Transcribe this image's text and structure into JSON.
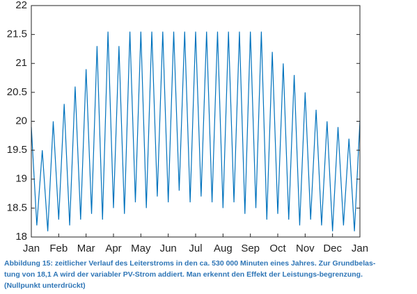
{
  "chart_data": {
    "type": "line",
    "x": [
      0,
      0.2,
      0.4,
      0.6,
      0.8,
      1,
      1.2,
      1.4,
      1.6,
      1.8,
      2,
      2.2,
      2.4,
      2.6,
      2.8,
      3,
      3.2,
      3.4,
      3.6,
      3.8,
      4,
      4.2,
      4.4,
      4.6,
      4.8,
      5,
      5.2,
      5.4,
      5.6,
      5.8,
      6,
      6.2,
      6.4,
      6.6,
      6.8,
      7,
      7.2,
      7.4,
      7.6,
      7.8,
      8,
      8.2,
      8.4,
      8.6,
      8.8,
      9,
      9.2,
      9.4,
      9.6,
      9.8,
      10,
      10.2,
      10.4,
      10.6,
      10.8,
      11,
      11.2,
      11.4,
      11.6,
      11.8,
      12
    ],
    "series": [
      {
        "color": "#0072bd",
        "values": [
          19.9,
          18.2,
          19.5,
          18.1,
          20.0,
          18.3,
          20.3,
          18.2,
          20.6,
          18.3,
          20.9,
          18.4,
          21.3,
          18.3,
          21.55,
          18.5,
          21.3,
          18.4,
          21.55,
          18.6,
          21.55,
          18.5,
          21.55,
          18.7,
          21.55,
          18.6,
          21.55,
          18.8,
          21.55,
          18.6,
          21.55,
          18.7,
          21.55,
          18.6,
          21.55,
          18.5,
          21.55,
          18.6,
          21.55,
          18.4,
          21.55,
          18.5,
          21.55,
          18.3,
          21.2,
          18.4,
          21.0,
          18.3,
          20.8,
          18.2,
          20.5,
          18.3,
          20.2,
          18.2,
          20.0,
          18.1,
          19.9,
          18.2,
          19.7,
          18.1,
          20.0
        ]
      }
    ],
    "xlim": [
      0,
      12
    ],
    "xticks": [
      {
        "value": 0,
        "label": "Jan"
      },
      {
        "value": 1,
        "label": "Feb"
      },
      {
        "value": 2,
        "label": "Mar"
      },
      {
        "value": 3,
        "label": "Apr"
      },
      {
        "value": 4,
        "label": "May"
      },
      {
        "value": 5,
        "label": "Jun"
      },
      {
        "value": 6,
        "label": "Jul"
      },
      {
        "value": 7,
        "label": "Aug"
      },
      {
        "value": 8,
        "label": "Sep"
      },
      {
        "value": 9,
        "label": "Oct"
      },
      {
        "value": 10,
        "label": "Nov"
      },
      {
        "value": 11,
        "label": "Dec"
      },
      {
        "value": 12,
        "label": "Jan"
      }
    ],
    "ylim": [
      18,
      22
    ],
    "yticks": [
      18,
      18.5,
      19,
      19.5,
      20,
      20.5,
      21,
      21.5,
      22
    ]
  },
  "caption": [
    "Abbildung 15: zeitlicher Verlauf des Leiterstroms in den ca. 530 000 Minuten eines Jahres. Zur Grundbelas-",
    "tung von 18,1 A wird der variabler PV-Strom addiert. Man erkennt den Effekt der Leistungs-begrenzung.",
    "(Nullpunkt unterdrückt)"
  ]
}
